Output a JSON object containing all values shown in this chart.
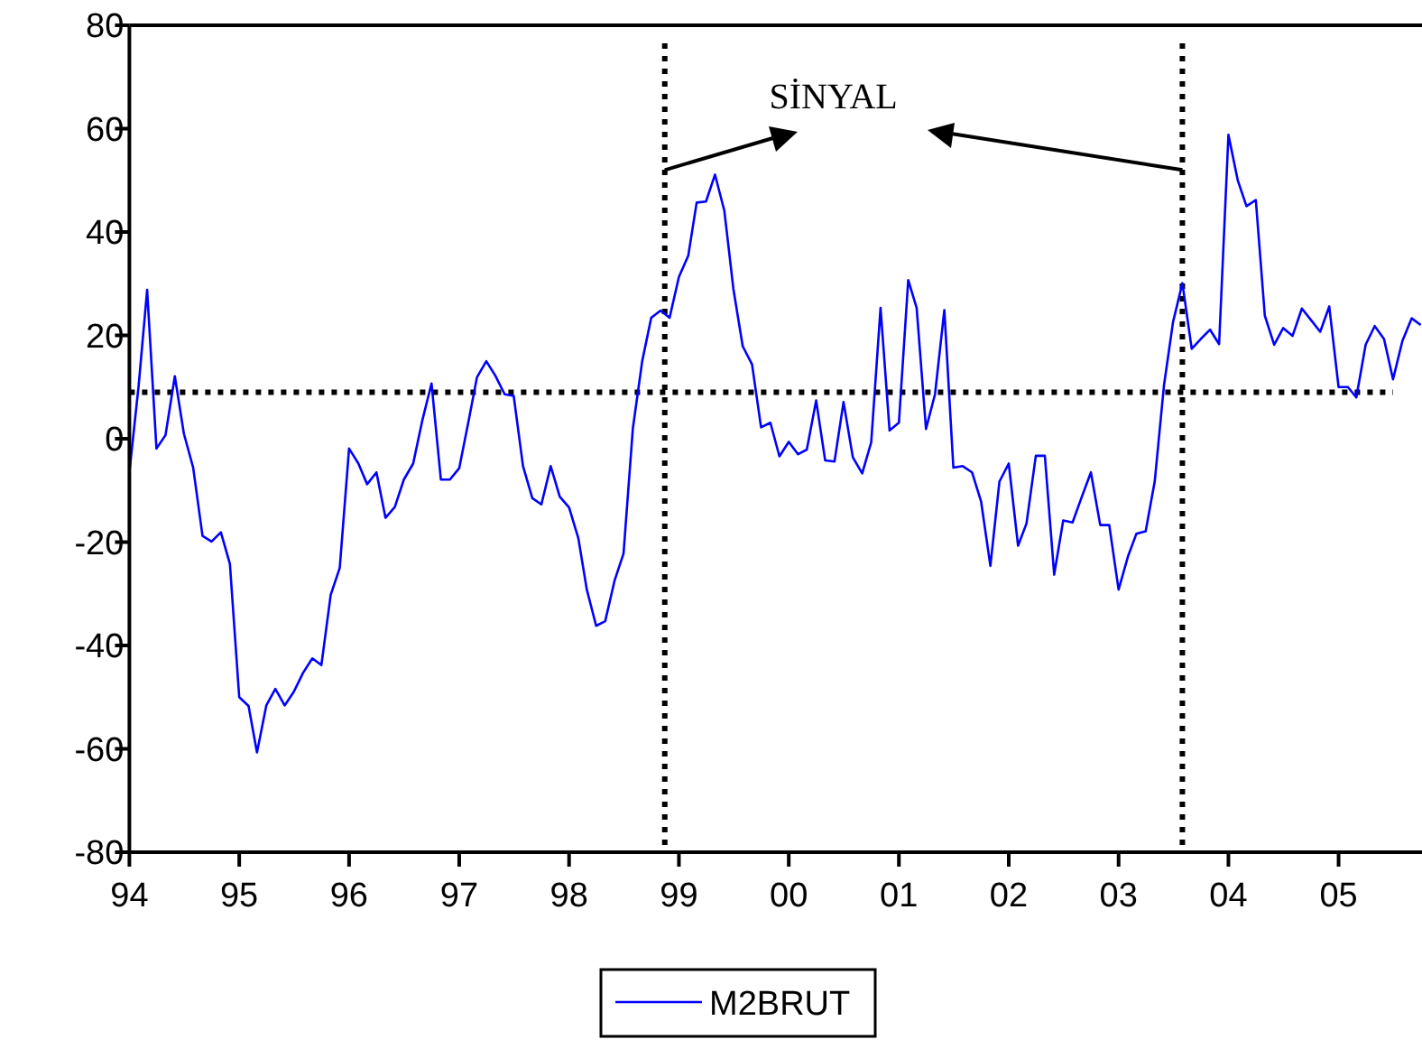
{
  "chart_data": {
    "type": "line",
    "x": [
      "1994-01",
      "1994-02",
      "1994-03",
      "1994-04",
      "1994-05",
      "1994-06",
      "1994-07",
      "1994-08",
      "1994-09",
      "1994-10",
      "1994-11",
      "1994-12",
      "1995-01",
      "1995-02",
      "1995-03",
      "1995-04",
      "1995-05",
      "1995-06",
      "1995-07",
      "1995-08",
      "1995-09",
      "1995-10",
      "1995-11",
      "1995-12",
      "1996-01",
      "1996-02",
      "1996-03",
      "1996-04",
      "1996-05",
      "1996-06",
      "1996-07",
      "1996-08",
      "1996-09",
      "1996-10",
      "1996-11",
      "1996-12",
      "1997-01",
      "1997-02",
      "1997-03",
      "1997-04",
      "1997-05",
      "1997-06",
      "1997-07",
      "1997-08",
      "1997-09",
      "1997-10",
      "1997-11",
      "1997-12",
      "1998-01",
      "1998-02",
      "1998-03",
      "1998-04",
      "1998-05",
      "1998-06",
      "1998-07",
      "1998-08",
      "1998-09",
      "1998-10",
      "1998-11",
      "1998-12",
      "1999-01",
      "1999-02",
      "1999-03",
      "1999-04",
      "1999-05",
      "1999-06",
      "1999-07",
      "1999-08",
      "1999-09",
      "1999-10",
      "1999-11",
      "1999-12",
      "2000-01",
      "2000-02",
      "2000-03",
      "2000-04",
      "2000-05",
      "2000-06",
      "2000-07",
      "2000-08",
      "2000-09",
      "2000-10",
      "2000-11",
      "2000-12",
      "2001-01",
      "2001-02",
      "2001-03",
      "2001-04",
      "2001-05",
      "2001-06",
      "2001-07",
      "2001-08",
      "2001-09",
      "2001-10",
      "2001-11",
      "2001-12",
      "2002-01",
      "2002-02",
      "2002-03",
      "2002-04",
      "2002-05",
      "2002-06",
      "2002-07",
      "2002-08",
      "2002-09",
      "2002-10",
      "2002-11",
      "2002-12",
      "2003-01",
      "2003-02",
      "2003-03",
      "2003-04",
      "2003-05",
      "2003-06",
      "2003-07",
      "2003-08",
      "2003-09",
      "2003-10",
      "2003-11",
      "2003-12",
      "2004-01",
      "2004-02",
      "2004-03",
      "2004-04",
      "2004-05",
      "2004-06",
      "2004-07",
      "2004-08",
      "2004-09",
      "2004-10",
      "2004-11",
      "2004-12",
      "2005-01",
      "2005-02",
      "2005-03",
      "2005-04",
      "2005-05",
      "2005-06",
      "2005-07",
      "2005-08",
      "2005-09",
      "2005-10"
    ],
    "series": [
      {
        "name": "M2BRUT",
        "color": "#0000ff",
        "values": [
          -6.5,
          10.4,
          28.8,
          -1.9,
          0.7,
          12.1,
          1,
          -5.6,
          -18.8,
          -19.9,
          -18.1,
          -24.2,
          -50,
          -51.7,
          -60.7,
          -51.6,
          -48.4,
          -51.6,
          -49,
          -45.3,
          -42.5,
          -43.8,
          -30.2,
          -25,
          -1.9,
          -4.8,
          -8.8,
          -6.5,
          -15.3,
          -13.2,
          -7.9,
          -4.8,
          3.7,
          10.7,
          -7.9,
          -7.9,
          -5.7,
          3.4,
          11.9,
          15,
          12.2,
          8.6,
          8.3,
          -5.3,
          -11.5,
          -12.7,
          -5.3,
          -11.2,
          -13.3,
          -19.3,
          -29.2,
          -36.2,
          -35.3,
          -27.5,
          -22.2,
          2,
          15,
          23.4,
          24.8,
          23.4,
          31.3,
          35.4,
          45.7,
          45.9,
          51.1,
          44.1,
          29,
          17.9,
          14.4,
          2.2,
          3.1,
          -3.4,
          -0.6,
          -3,
          -2.1,
          7.4,
          -4.2,
          -4.4,
          7.1,
          -3.6,
          -6.7,
          -0.7,
          25.3,
          1.6,
          3.1,
          30.7,
          25.3,
          1.9,
          8.6,
          24.9,
          -5.6,
          -5.3,
          -6.5,
          -12.1,
          -24.6,
          -8.3,
          -4.8,
          -20.7,
          -16.4,
          -3.3,
          -3.3,
          -26.3,
          -15.8,
          -16.2,
          -11.2,
          -6.5,
          -16.7,
          -16.7,
          -29.2,
          -22.8,
          -18.4,
          -17.9,
          -8.3,
          10.4,
          22.6,
          30.1,
          17.4,
          19.3,
          21.1,
          18.3,
          58.8,
          50,
          45,
          46.2,
          23.8,
          18.2,
          21.4,
          19.9,
          25.2,
          23,
          20.7,
          25.6,
          10,
          10,
          8,
          18.2,
          21.8,
          19.3,
          11.5,
          18.9,
          23.3,
          22
        ]
      }
    ],
    "xlim": [
      "1994-01",
      "2005-10"
    ],
    "xticks": [
      {
        "value": "1994",
        "label": "94"
      },
      {
        "value": "1995",
        "label": "95"
      },
      {
        "value": "1996",
        "label": "96"
      },
      {
        "value": "1997",
        "label": "97"
      },
      {
        "value": "1998",
        "label": "98"
      },
      {
        "value": "1999",
        "label": "99"
      },
      {
        "value": "2000",
        "label": "00"
      },
      {
        "value": "2001",
        "label": "01"
      },
      {
        "value": "2002",
        "label": "02"
      },
      {
        "value": "2003",
        "label": "03"
      },
      {
        "value": "2004",
        "label": "04"
      },
      {
        "value": "2005",
        "label": "05"
      }
    ],
    "ylim": [
      -80,
      80
    ],
    "yticks": [
      -80,
      -60,
      -40,
      -20,
      0,
      20,
      40,
      60,
      80
    ],
    "ref_lines": [
      {
        "axis": "y",
        "value": 9,
        "line_style": "dotted",
        "color": "#000000"
      },
      {
        "axis": "x",
        "value": "1998-11-15",
        "line_style": "dotted",
        "color": "#000000"
      },
      {
        "axis": "x",
        "value": "2003-08",
        "line_style": "dotted",
        "color": "#000000"
      }
    ],
    "annotations": [
      {
        "text": "SİNYAL",
        "x": "1998-11-15",
        "y": 52
      }
    ],
    "legend": "bottom",
    "grid": false,
    "line_style": "solid",
    "marker": "none"
  }
}
